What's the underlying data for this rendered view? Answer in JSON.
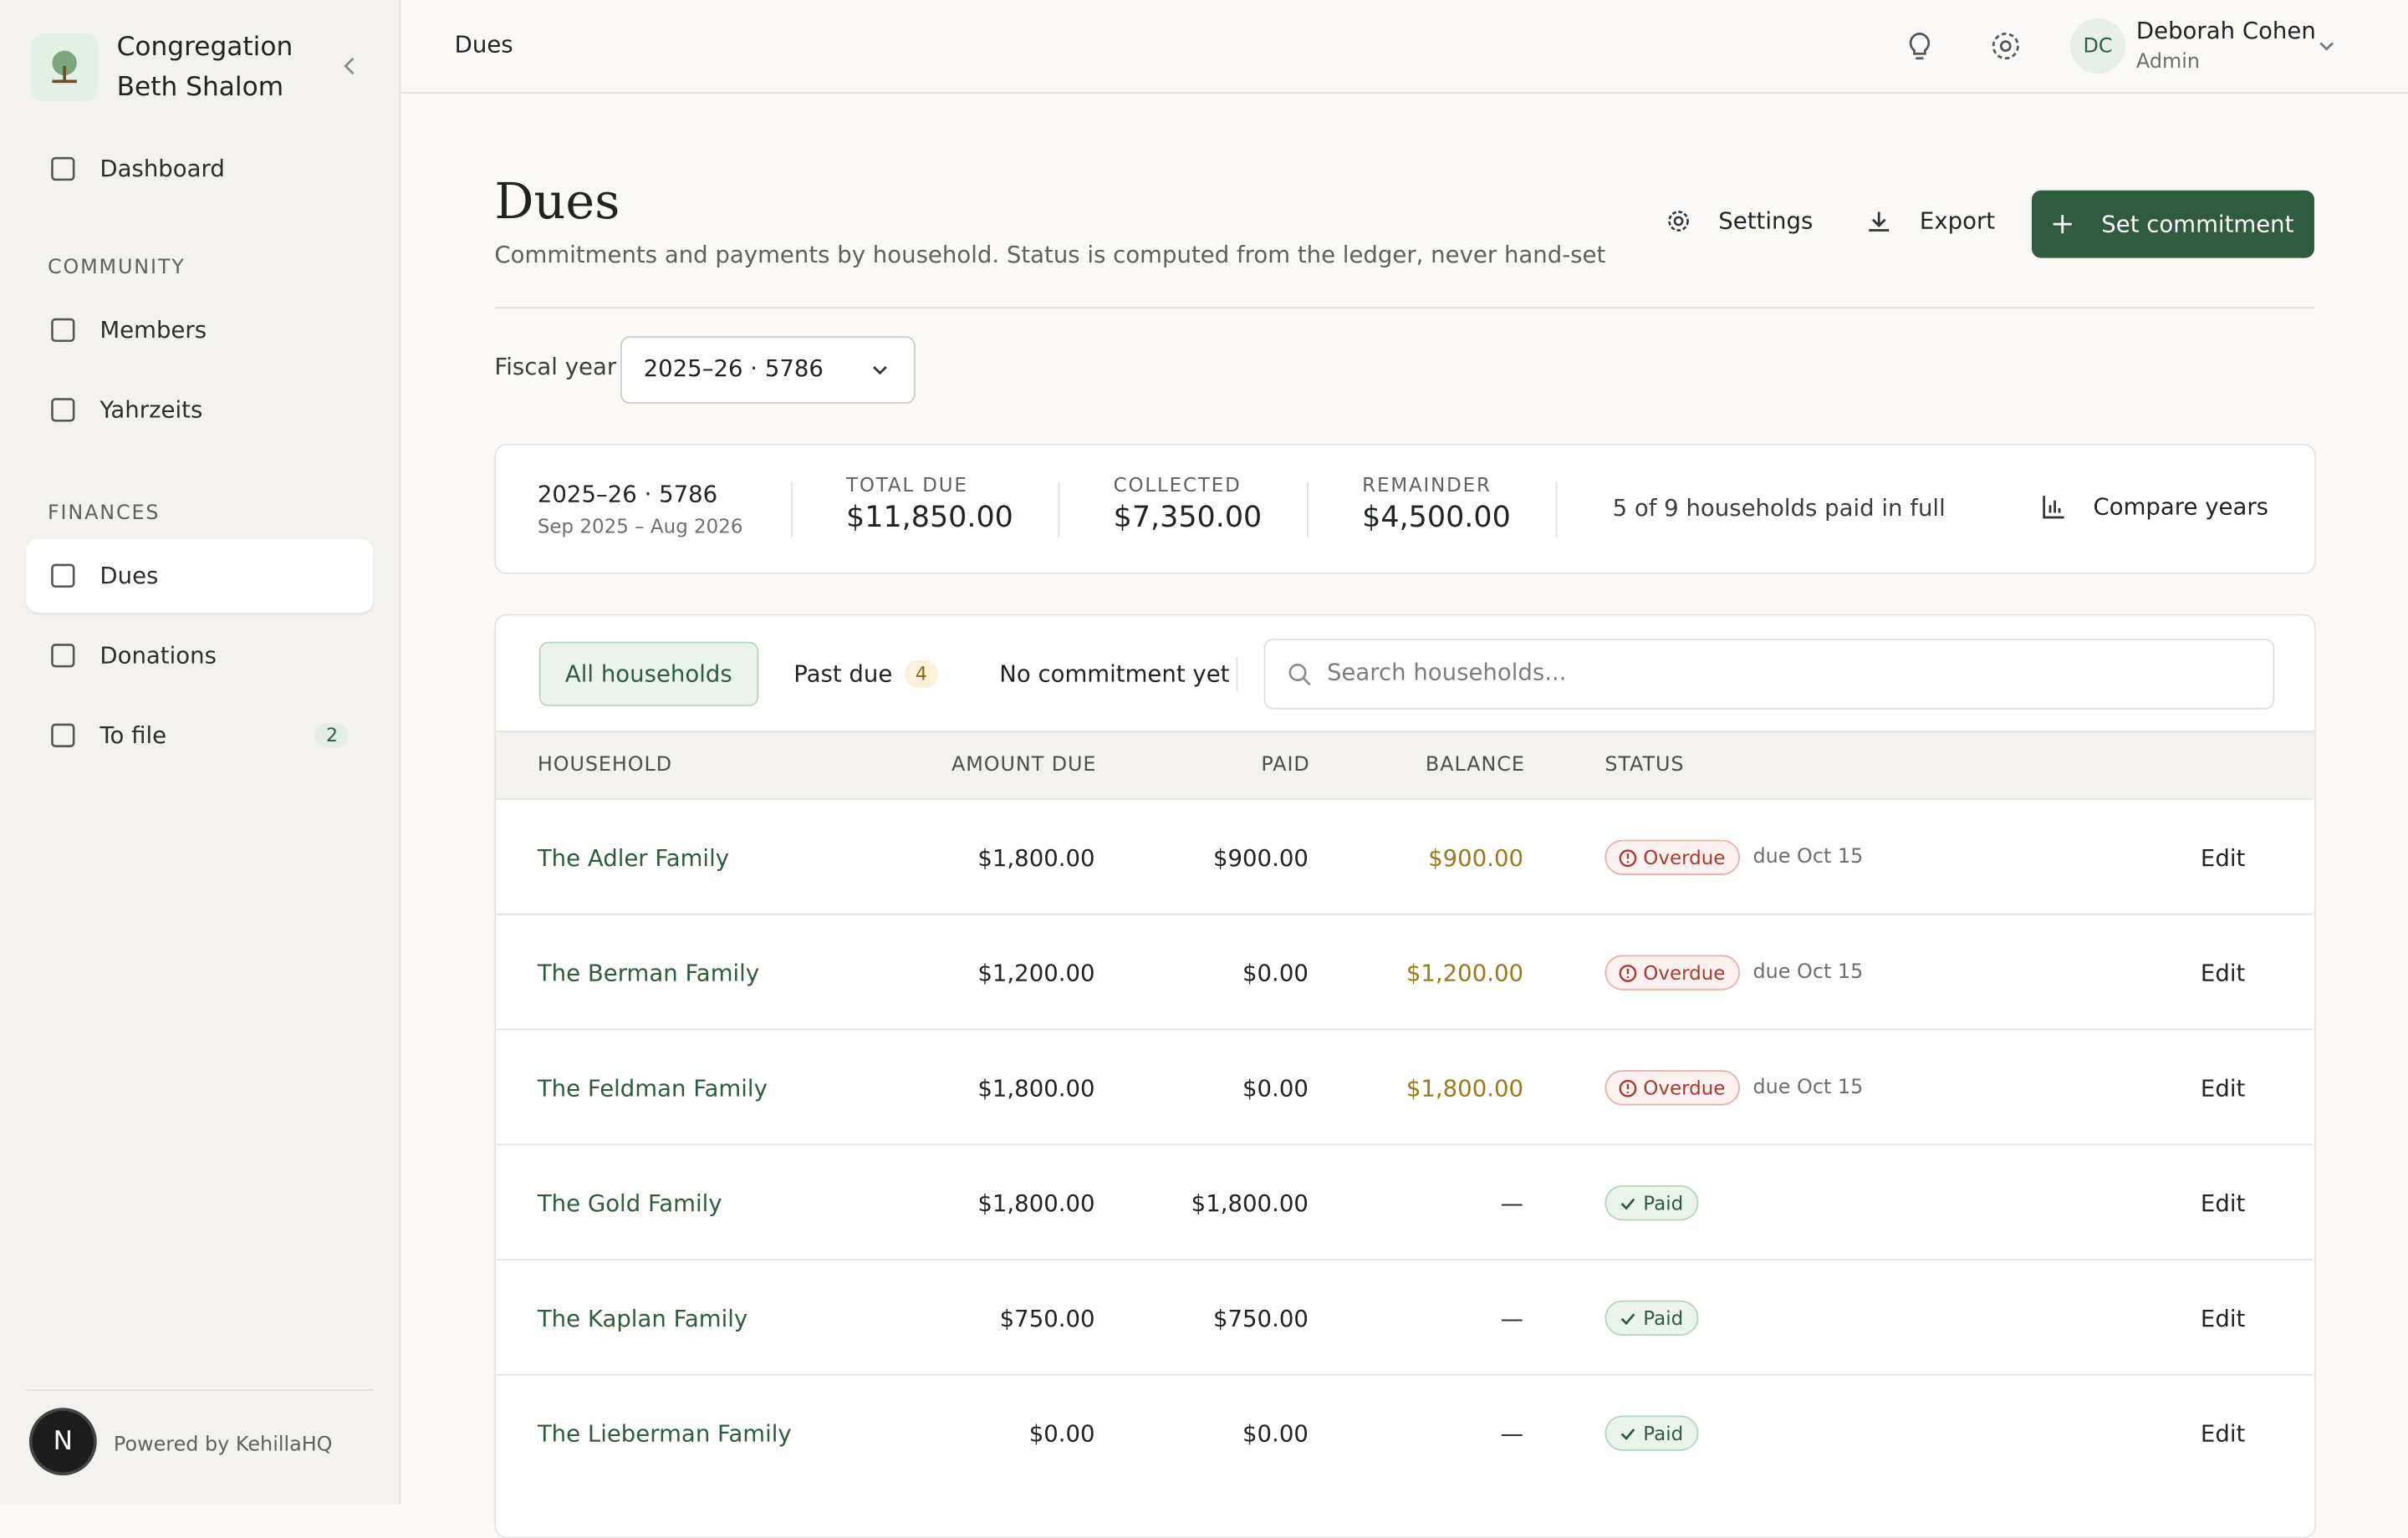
{
  "sidebar": {
    "org_name": "Congregation Beth Shalom",
    "nav": [
      {
        "label": "Dashboard"
      }
    ],
    "sections": [
      {
        "title": "COMMUNITY",
        "items": [
          {
            "label": "Members"
          },
          {
            "label": "Yahrzeits"
          }
        ]
      },
      {
        "title": "FINANCES",
        "items": [
          {
            "label": "Dues"
          },
          {
            "label": "Donations"
          },
          {
            "label": "To file",
            "badge": "2"
          }
        ]
      }
    ],
    "footer": "Powered by KehillaHQ",
    "avatar": "N"
  },
  "topbar": {
    "breadcrumb": "Dues",
    "user_name": "Deborah Cohen",
    "user_role": "Admin",
    "initials": "DC"
  },
  "header": {
    "title": "Dues",
    "subtitle": "Commitments and payments by household. Status is computed from the ledger, never hand-set",
    "buttons": [
      "Settings",
      "Export",
      "Set commitment"
    ]
  },
  "fiscal_year": {
    "label": "Fiscal year",
    "selected": "2025–26 · 5786"
  },
  "summary": {
    "year": "2025–26 · 5786",
    "range": "Sep 2025 – Aug 2026",
    "stats": [
      {
        "label": "TOTAL DUE",
        "value": "$11,850.00"
      },
      {
        "label": "COLLECTED",
        "value": "$7,350.00"
      },
      {
        "label": "REMAINDER",
        "value": "$4,500.00"
      }
    ],
    "paid_note": "5 of 9 households paid in full",
    "compare": "Compare years"
  },
  "tabs": [
    {
      "label": "All households"
    },
    {
      "label": "Past due",
      "badge": "4"
    },
    {
      "label": "No commitment yet"
    }
  ],
  "search_placeholder": "Search households...",
  "table": {
    "columns": [
      "HOUSEHOLD",
      "AMOUNT DUE",
      "PAID",
      "BALANCE",
      "STATUS"
    ],
    "rows": [
      [
        "The Adler Family",
        "$1,800.00",
        "$900.00",
        "$900.00",
        "Overdue",
        "due Oct 15",
        "Edit"
      ],
      [
        "The Berman Family",
        "$1,200.00",
        "$0.00",
        "$1,200.00",
        "Overdue",
        "due Oct 15",
        "Edit"
      ],
      [
        "The Feldman Family",
        "$1,800.00",
        "$0.00",
        "$1,800.00",
        "Overdue",
        "due Oct 15",
        "Edit"
      ],
      [
        "The Gold Family",
        "$1,800.00",
        "$1,800.00",
        "—",
        "Paid",
        null,
        "Edit"
      ],
      [
        "The Kaplan Family",
        "$750.00",
        "$750.00",
        "—",
        "Paid",
        null,
        "Edit"
      ],
      [
        "The Lieberman Family",
        "$0.00",
        "$0.00",
        "—",
        "Paid",
        null,
        "Edit"
      ]
    ]
  }
}
